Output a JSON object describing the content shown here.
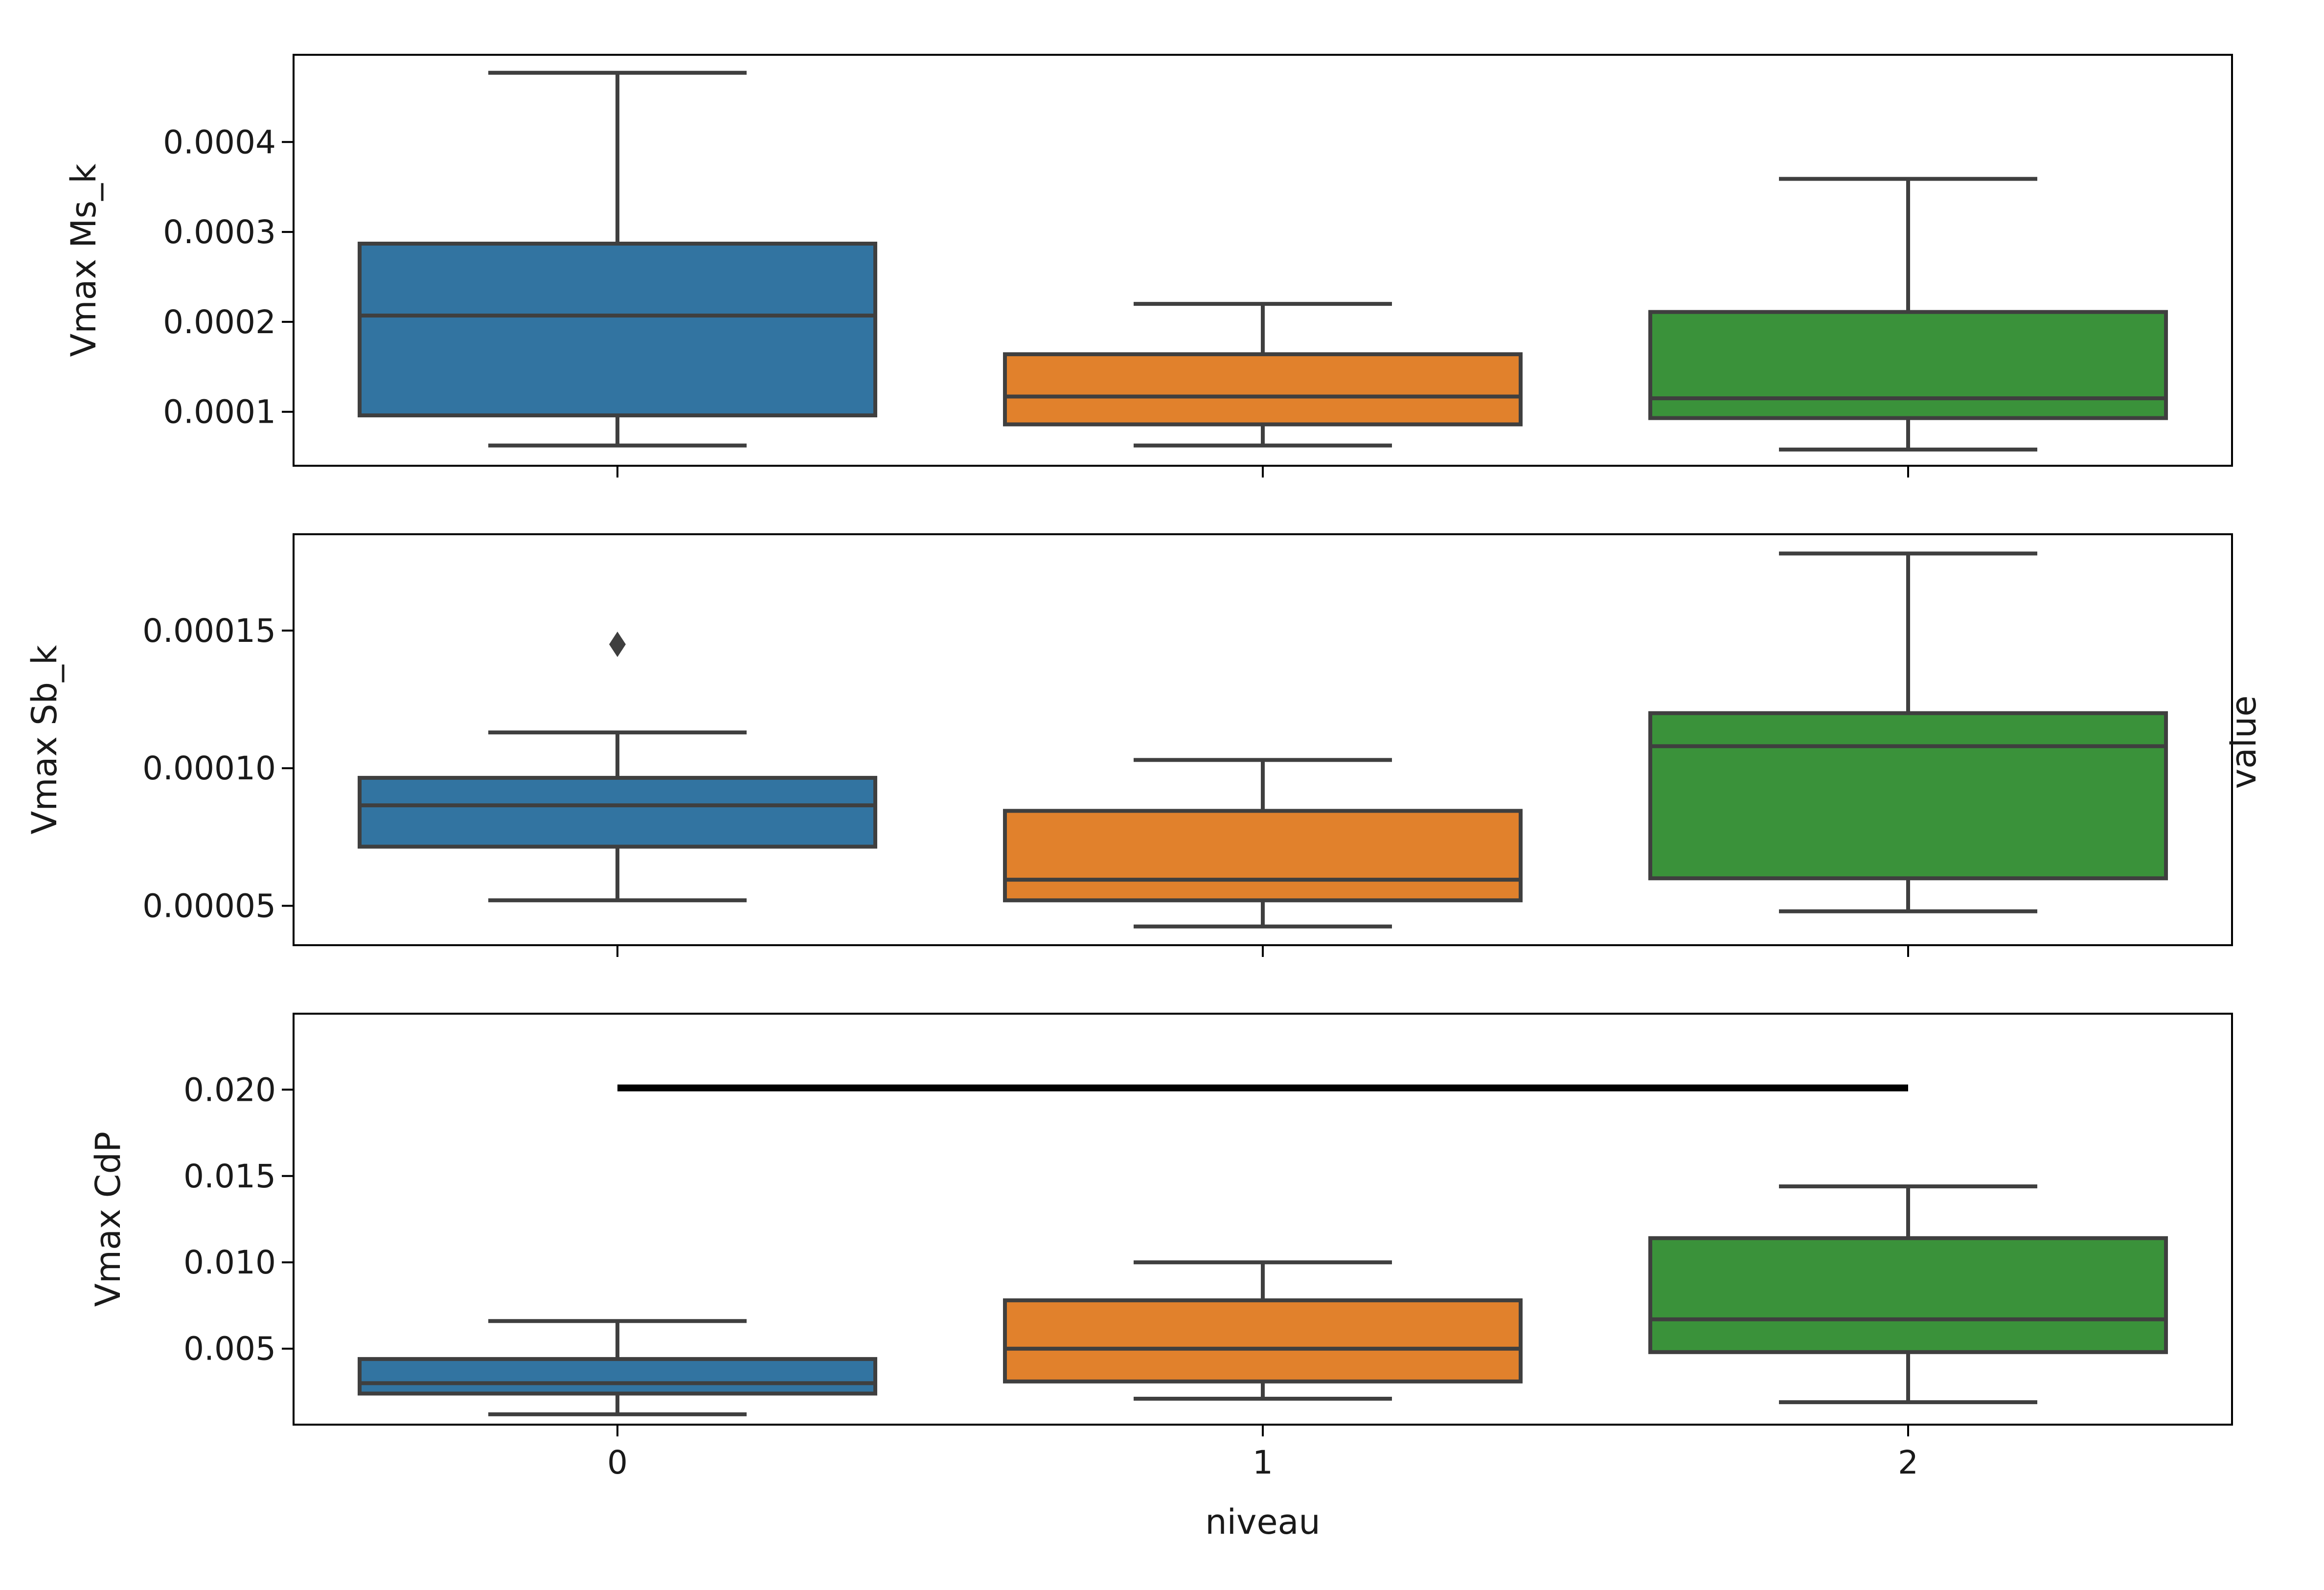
{
  "figure": {
    "x_axis_label": "niveau",
    "side_label": "value",
    "x_tick_labels": [
      "0",
      "1",
      "2"
    ]
  },
  "colors": {
    "series": [
      "#3274a1",
      "#e1812c",
      "#3a923a"
    ],
    "lines": "#3f3f3f",
    "reference_line": "#000000"
  },
  "chart_data": [
    {
      "type": "box",
      "ylabel": "Vmax Ms_k",
      "categories": [
        "0",
        "1",
        "2"
      ],
      "ylim": [
        4e-05,
        0.000497
      ],
      "yticks": [
        0.0001,
        0.0002,
        0.0003,
        0.0004
      ],
      "ytick_labels": [
        "0.0001",
        "0.0002",
        "0.0003",
        "0.0004"
      ],
      "boxes": [
        {
          "category": "0",
          "whisker_low": 6.25e-05,
          "q1": 9.6e-05,
          "median": 0.000207,
          "q3": 0.000287,
          "whisker_high": 0.000477,
          "outliers": []
        },
        {
          "category": "1",
          "whisker_low": 6.25e-05,
          "q1": 8.6e-05,
          "median": 0.000117,
          "q3": 0.000164,
          "whisker_high": 0.00022,
          "outliers": []
        },
        {
          "category": "2",
          "whisker_low": 5.8e-05,
          "q1": 9.3e-05,
          "median": 0.000115,
          "q3": 0.000211,
          "whisker_high": 0.000359,
          "outliers": []
        }
      ]
    },
    {
      "type": "box",
      "ylabel": "Vmax Sb_k",
      "categories": [
        "0",
        "1",
        "2"
      ],
      "ylim": [
        3.57e-05,
        0.000185
      ],
      "yticks": [
        5e-05,
        0.0001,
        0.00015
      ],
      "ytick_labels": [
        "0.00005",
        "0.00010",
        "0.00015"
      ],
      "boxes": [
        {
          "category": "0",
          "whisker_low": 5.2e-05,
          "q1": 7.15e-05,
          "median": 8.65e-05,
          "q3": 9.65e-05,
          "whisker_high": 0.000113,
          "outliers": [
            0.000145
          ]
        },
        {
          "category": "1",
          "whisker_low": 4.25e-05,
          "q1": 5.2e-05,
          "median": 5.95e-05,
          "q3": 8.45e-05,
          "whisker_high": 0.000103,
          "outliers": []
        },
        {
          "category": "2",
          "whisker_low": 4.8e-05,
          "q1": 6e-05,
          "median": 0.000108,
          "q3": 0.00012,
          "whisker_high": 0.000178,
          "outliers": []
        }
      ]
    },
    {
      "type": "box",
      "ylabel": "Vmax CdP",
      "categories": [
        "0",
        "1",
        "2"
      ],
      "ylim": [
        0.0006,
        0.0244
      ],
      "yticks": [
        0.005,
        0.01,
        0.015,
        0.02
      ],
      "ytick_labels": [
        "0.005",
        "0.010",
        "0.015",
        "0.020"
      ],
      "boxes": [
        {
          "category": "0",
          "whisker_low": 0.0012,
          "q1": 0.0024,
          "median": 0.003,
          "q3": 0.0044,
          "whisker_high": 0.0066,
          "outliers": []
        },
        {
          "category": "1",
          "whisker_low": 0.0021,
          "q1": 0.0031,
          "median": 0.005,
          "q3": 0.0078,
          "whisker_high": 0.01,
          "outliers": []
        },
        {
          "category": "2",
          "whisker_low": 0.0019,
          "q1": 0.0048,
          "median": 0.0067,
          "q3": 0.0114,
          "whisker_high": 0.0144,
          "outliers": []
        }
      ],
      "reference_line": {
        "from_category": "0",
        "to_category": "2",
        "y": 0.0201
      }
    }
  ]
}
